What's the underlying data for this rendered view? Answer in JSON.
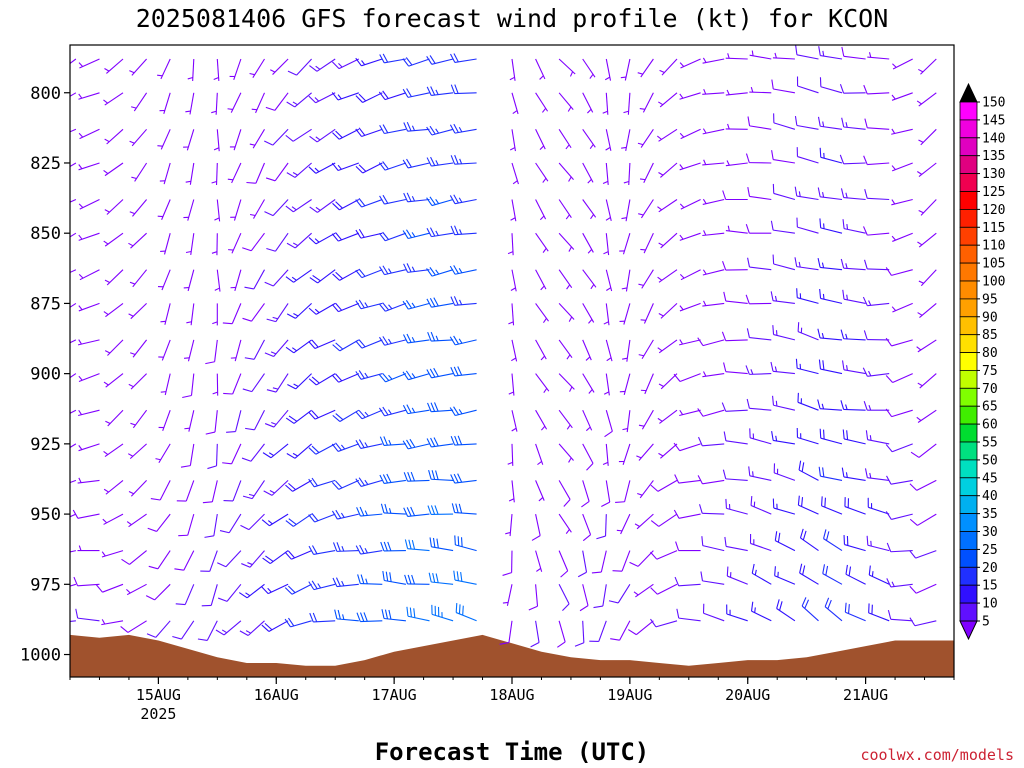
{
  "chart_data": {
    "type": "wind-profile",
    "title": "2025081406 GFS forecast wind profile (kt) for KCON",
    "xlabel": "Forecast Time (UTC)",
    "credit": "coolwx.com/models",
    "x_tick_labels": [
      "15AUG",
      "16AUG",
      "17AUG",
      "18AUG",
      "19AUG",
      "20AUG",
      "21AUG"
    ],
    "x_tick_days": [
      15,
      16,
      17,
      18,
      19,
      20,
      21
    ],
    "x_year_label": "2025",
    "x_range_days": [
      14.25,
      21.75
    ],
    "y_tick_labels": [
      "800",
      "825",
      "850",
      "875",
      "900",
      "925",
      "950",
      "975",
      "1000"
    ],
    "y_tick_values": [
      800,
      825,
      850,
      875,
      900,
      925,
      950,
      975,
      1000
    ],
    "y_range_hpa": [
      783,
      1008
    ],
    "colorbar_labels": [
      "150",
      "145",
      "140",
      "135",
      "130",
      "125",
      "120",
      "115",
      "110",
      "105",
      "100",
      "95",
      "90",
      "85",
      "80",
      "75",
      "70",
      "65",
      "60",
      "55",
      "50",
      "45",
      "40",
      "35",
      "30",
      "25",
      "20",
      "15",
      "10",
      "5"
    ],
    "colorbar_colors": [
      "#ff00ff",
      "#f000e0",
      "#e000c0",
      "#e00080",
      "#f00050",
      "#ff0000",
      "#ff2000",
      "#ff4000",
      "#ff6000",
      "#ff7800",
      "#ff8c00",
      "#ffa000",
      "#ffc000",
      "#ffe000",
      "#ffff00",
      "#c0ff00",
      "#80ff00",
      "#40ee00",
      "#00dd30",
      "#00e080",
      "#00e0c0",
      "#00d0e0",
      "#00b0f0",
      "#0090ff",
      "#0070ff",
      "#0050ff",
      "#2030ff",
      "#3010ff",
      "#6010ff",
      "#8000ff"
    ],
    "surface_pressure": [
      {
        "day": 14.25,
        "p": 993
      },
      {
        "day": 14.5,
        "p": 994
      },
      {
        "day": 14.75,
        "p": 993
      },
      {
        "day": 15.0,
        "p": 995
      },
      {
        "day": 15.25,
        "p": 998
      },
      {
        "day": 15.5,
        "p": 1001
      },
      {
        "day": 15.75,
        "p": 1003
      },
      {
        "day": 16.0,
        "p": 1003
      },
      {
        "day": 16.25,
        "p": 1004
      },
      {
        "day": 16.5,
        "p": 1004
      },
      {
        "day": 16.75,
        "p": 1002
      },
      {
        "day": 17.0,
        "p": 999
      },
      {
        "day": 17.25,
        "p": 997
      },
      {
        "day": 17.5,
        "p": 995
      },
      {
        "day": 17.75,
        "p": 993
      },
      {
        "day": 18.0,
        "p": 996
      },
      {
        "day": 18.25,
        "p": 999
      },
      {
        "day": 18.5,
        "p": 1001
      },
      {
        "day": 18.75,
        "p": 1002
      },
      {
        "day": 19.0,
        "p": 1002
      },
      {
        "day": 19.25,
        "p": 1003
      },
      {
        "day": 19.5,
        "p": 1004
      },
      {
        "day": 19.75,
        "p": 1003
      },
      {
        "day": 20.0,
        "p": 1002
      },
      {
        "day": 20.25,
        "p": 1002
      },
      {
        "day": 20.5,
        "p": 1001
      },
      {
        "day": 20.75,
        "p": 999
      },
      {
        "day": 21.0,
        "p": 997
      },
      {
        "day": 21.25,
        "p": 995
      },
      {
        "day": 21.5,
        "p": 995
      },
      {
        "day": 21.75,
        "p": 995
      }
    ],
    "wind_levels_hpa": [
      788,
      800,
      813,
      825,
      838,
      850,
      863,
      875,
      888,
      900,
      913,
      925,
      938,
      950,
      963,
      975,
      988
    ],
    "wind_columns": [
      {
        "day": 14.3,
        "dir": 240,
        "spd": 9
      },
      {
        "day": 14.5,
        "dir": 250,
        "spd": 8
      },
      {
        "day": 14.7,
        "dir": 230,
        "spd": 7
      },
      {
        "day": 14.9,
        "dir": 220,
        "spd": 8
      },
      {
        "day": 15.1,
        "dir": 200,
        "spd": 9
      },
      {
        "day": 15.3,
        "dir": 190,
        "spd": 10
      },
      {
        "day": 15.5,
        "dir": 180,
        "spd": 11
      },
      {
        "day": 15.7,
        "dir": 200,
        "spd": 12
      },
      {
        "day": 15.9,
        "dir": 210,
        "spd": 14
      },
      {
        "day": 16.1,
        "dir": 220,
        "spd": 17
      },
      {
        "day": 16.3,
        "dir": 230,
        "spd": 20
      },
      {
        "day": 16.5,
        "dir": 240,
        "spd": 22
      },
      {
        "day": 16.7,
        "dir": 245,
        "spd": 24
      },
      {
        "day": 16.9,
        "dir": 250,
        "spd": 26
      },
      {
        "day": 17.1,
        "dir": 255,
        "spd": 28
      },
      {
        "day": 17.3,
        "dir": 258,
        "spd": 30
      },
      {
        "day": 17.5,
        "dir": 260,
        "spd": 31
      },
      {
        "day": 17.7,
        "dir": 262,
        "spd": 30
      },
      {
        "day": 18.0,
        "dir": 170,
        "spd": 7
      },
      {
        "day": 18.2,
        "dir": 150,
        "spd": 8
      },
      {
        "day": 18.4,
        "dir": 140,
        "spd": 9
      },
      {
        "day": 18.6,
        "dir": 150,
        "spd": 10
      },
      {
        "day": 18.8,
        "dir": 170,
        "spd": 10
      },
      {
        "day": 19.0,
        "dir": 190,
        "spd": 9
      },
      {
        "day": 19.2,
        "dir": 210,
        "spd": 8
      },
      {
        "day": 19.4,
        "dir": 230,
        "spd": 9
      },
      {
        "day": 19.6,
        "dir": 250,
        "spd": 10
      },
      {
        "day": 19.8,
        "dir": 260,
        "spd": 11
      },
      {
        "day": 20.0,
        "dir": 270,
        "spd": 13
      },
      {
        "day": 20.2,
        "dir": 275,
        "spd": 15
      },
      {
        "day": 20.4,
        "dir": 280,
        "spd": 17
      },
      {
        "day": 20.6,
        "dir": 285,
        "spd": 19
      },
      {
        "day": 20.8,
        "dir": 280,
        "spd": 21
      },
      {
        "day": 21.0,
        "dir": 275,
        "spd": 19
      },
      {
        "day": 21.2,
        "dir": 270,
        "spd": 16
      },
      {
        "day": 21.4,
        "dir": 250,
        "spd": 12
      },
      {
        "day": 21.6,
        "dir": 230,
        "spd": 10
      }
    ],
    "surface_color": "#a0522d",
    "grid": false
  }
}
